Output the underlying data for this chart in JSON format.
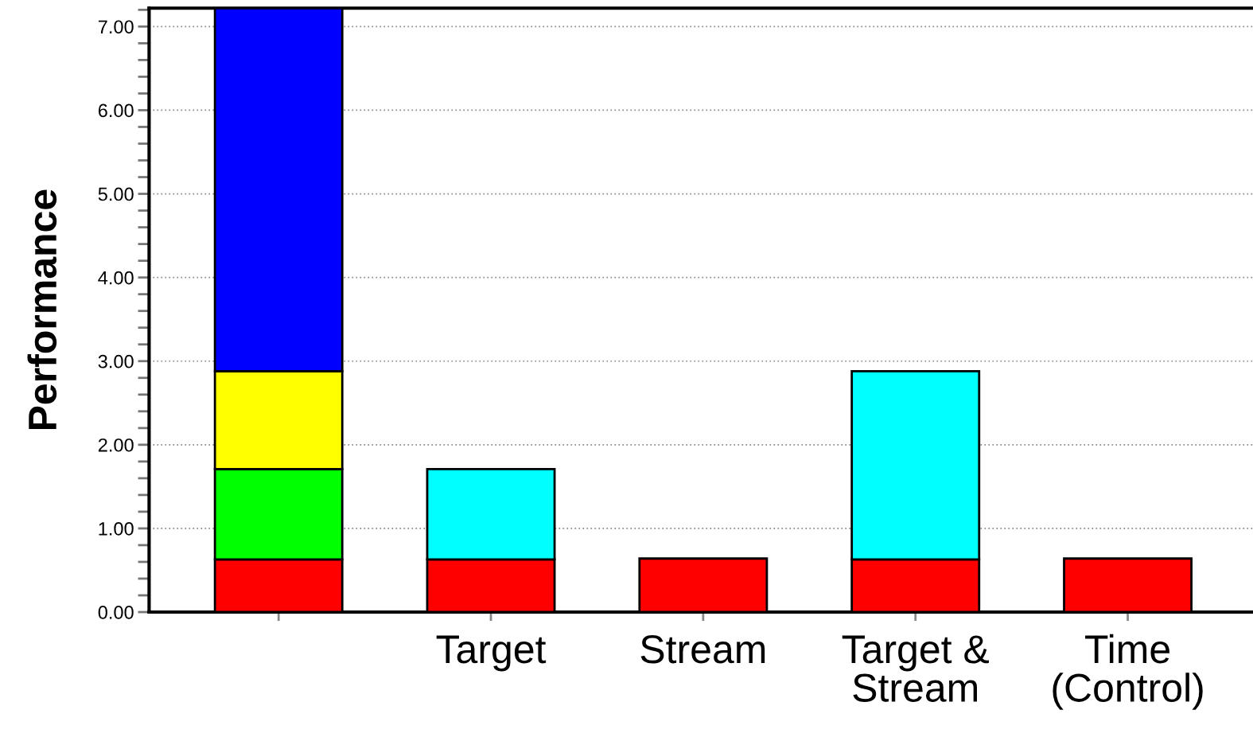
{
  "chart_data": {
    "type": "bar",
    "stacked": true,
    "ylabel": "Performance",
    "categories": [
      null,
      "Target",
      "Stream",
      "Target &\nStream",
      "Time\n(Control)"
    ],
    "series": [
      {
        "color": "#ff0000",
        "values": [
          0.63,
          0.63,
          0.64,
          0.63,
          0.64
        ]
      },
      {
        "color": "#00ff00",
        "values": [
          1.08,
          null,
          null,
          null,
          null
        ]
      },
      {
        "color": "#ffff00",
        "values": [
          1.17,
          null,
          null,
          null,
          null
        ]
      },
      {
        "color": "#0000ff",
        "values": [
          4.34,
          null,
          null,
          null,
          null
        ]
      },
      {
        "color": "#00ffff",
        "values": [
          null,
          1.08,
          null,
          2.25,
          null
        ]
      }
    ],
    "ylim": [
      0,
      7.22
    ],
    "yticks": [
      {
        "value": 0,
        "label": "0.00"
      },
      {
        "value": 0.2,
        "label": null
      },
      {
        "value": 0.4,
        "label": null
      },
      {
        "value": 0.6,
        "label": null
      },
      {
        "value": 0.8,
        "label": null
      },
      {
        "value": 1,
        "label": "1.00"
      },
      {
        "value": 1.2,
        "label": null
      },
      {
        "value": 1.4,
        "label": null
      },
      {
        "value": 1.6,
        "label": null
      },
      {
        "value": 1.8,
        "label": null
      },
      {
        "value": 2,
        "label": "2.00"
      },
      {
        "value": 2.2,
        "label": null
      },
      {
        "value": 2.4,
        "label": null
      },
      {
        "value": 2.6,
        "label": null
      },
      {
        "value": 2.8,
        "label": null
      },
      {
        "value": 3,
        "label": "3.00"
      },
      {
        "value": 3.2,
        "label": null
      },
      {
        "value": 3.4,
        "label": null
      },
      {
        "value": 3.6,
        "label": null
      },
      {
        "value": 3.8,
        "label": null
      },
      {
        "value": 4,
        "label": "4.00"
      },
      {
        "value": 4.2,
        "label": null
      },
      {
        "value": 4.4,
        "label": null
      },
      {
        "value": 4.6,
        "label": null
      },
      {
        "value": 4.8,
        "label": null
      },
      {
        "value": 5,
        "label": "5.00"
      },
      {
        "value": 5.2,
        "label": null
      },
      {
        "value": 5.4,
        "label": null
      },
      {
        "value": 5.6,
        "label": null
      },
      {
        "value": 5.8,
        "label": null
      },
      {
        "value": 6,
        "label": "6.00"
      },
      {
        "value": 6.2,
        "label": null
      },
      {
        "value": 6.4,
        "label": null
      },
      {
        "value": 6.6,
        "label": null
      },
      {
        "value": 6.8,
        "label": null
      },
      {
        "value": 7,
        "label": "7.00"
      },
      {
        "value": 7.2,
        "label": null
      }
    ],
    "grid": "y",
    "legend": false
  }
}
